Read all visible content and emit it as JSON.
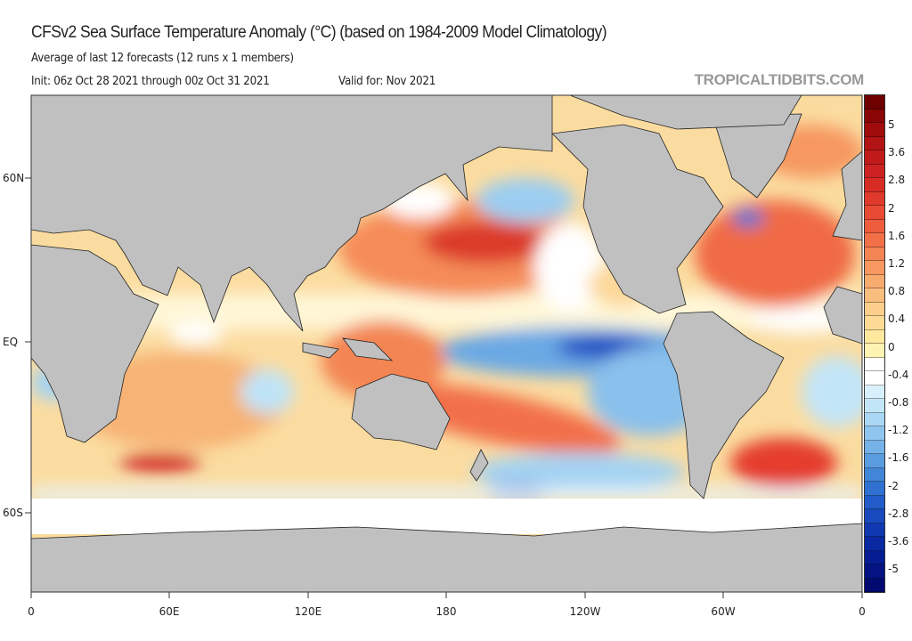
{
  "header": {
    "title": "CFSv2 Sea Surface Temperature Anomaly (°C) (based on 1984-2009 Model Climatology)",
    "subtitle": "Average of last 12 forecasts (12 runs x 1 members)",
    "init": "Init: 06z Oct 28 2021 through 00z Oct 31 2021",
    "valid": "Valid for: Nov 2021",
    "brand": "TROPICALTIDBITS.COM"
  },
  "axes": {
    "x_labels": [
      "0",
      "60E",
      "120E",
      "180",
      "120W",
      "60W",
      "0"
    ],
    "y_labels": [
      "60N",
      "EQ",
      "60S"
    ]
  },
  "colorbar": {
    "labels": [
      "5",
      "3.6",
      "2.8",
      "2",
      "1.6",
      "1.2",
      "0.8",
      "0.4",
      "0",
      "-0.4",
      "-0.8",
      "-1.2",
      "-1.6",
      "-2",
      "-2.8",
      "-3.6",
      "-5"
    ],
    "colors": [
      "#6e0000",
      "#8a0606",
      "#a00c0c",
      "#b21414",
      "#c01a1a",
      "#cc2222",
      "#d62c24",
      "#e03a2c",
      "#e84a34",
      "#ee5c3e",
      "#f27048",
      "#f58454",
      "#f69860",
      "#f8ab6e",
      "#f9bd7e",
      "#fbce8c",
      "#fcdc94",
      "#fde89e",
      "#fff3b4",
      "#ffffff",
      "#ffffff",
      "#d8f0fb",
      "#c2e5f8",
      "#aad7f3",
      "#8fc5ee",
      "#74b2e8",
      "#5a9ce0",
      "#4286d8",
      "#2f70d0",
      "#215cc8",
      "#184abd",
      "#1038b0",
      "#0a28a2",
      "#061c92",
      "#041282",
      "#020a72"
    ]
  }
}
